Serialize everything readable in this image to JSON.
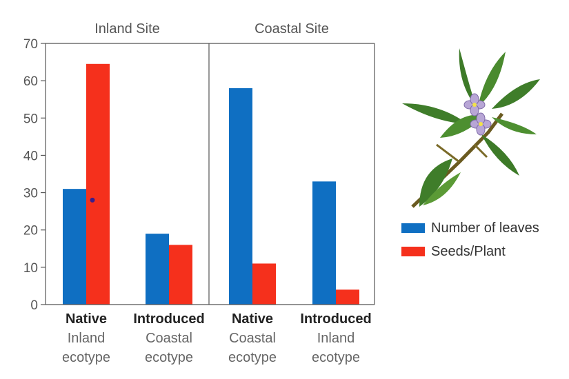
{
  "colors": {
    "leaves": "#0f6fc2",
    "seeds": "#f5301c",
    "axis": "#555555",
    "marker": "#3a1e8c"
  },
  "panels": [
    "Inland Site",
    "Coastal Site"
  ],
  "legend": [
    {
      "label": "Number of leaves",
      "color": "#0f6fc2"
    },
    {
      "label": "Seeds/Plant",
      "color": "#f5301c"
    }
  ],
  "illustration": {
    "icon": "flowering-plant-icon"
  },
  "chart_data": {
    "type": "bar",
    "categories": [
      {
        "bold": "Native",
        "line2": "Inland",
        "line3": "ecotype",
        "site": "Inland Site"
      },
      {
        "bold": "Introduced",
        "line2": "Coastal",
        "line3": "ecotype",
        "site": "Inland Site"
      },
      {
        "bold": "Native",
        "line2": "Coastal",
        "line3": "ecotype",
        "site": "Coastal Site"
      },
      {
        "bold": "Introduced",
        "line2": "Inland",
        "line3": "ecotype",
        "site": "Coastal Site"
      }
    ],
    "series": [
      {
        "name": "Number of leaves",
        "values": [
          31,
          19,
          58,
          33
        ]
      },
      {
        "name": "Seeds/Plant",
        "values": [
          64.5,
          16,
          11,
          4
        ]
      }
    ],
    "ylim": [
      0,
      70
    ],
    "yticks": [
      0,
      10,
      20,
      30,
      40,
      50,
      60,
      70
    ],
    "marker_point": {
      "category_index": 0,
      "y": 28
    },
    "legend_position": "right"
  }
}
